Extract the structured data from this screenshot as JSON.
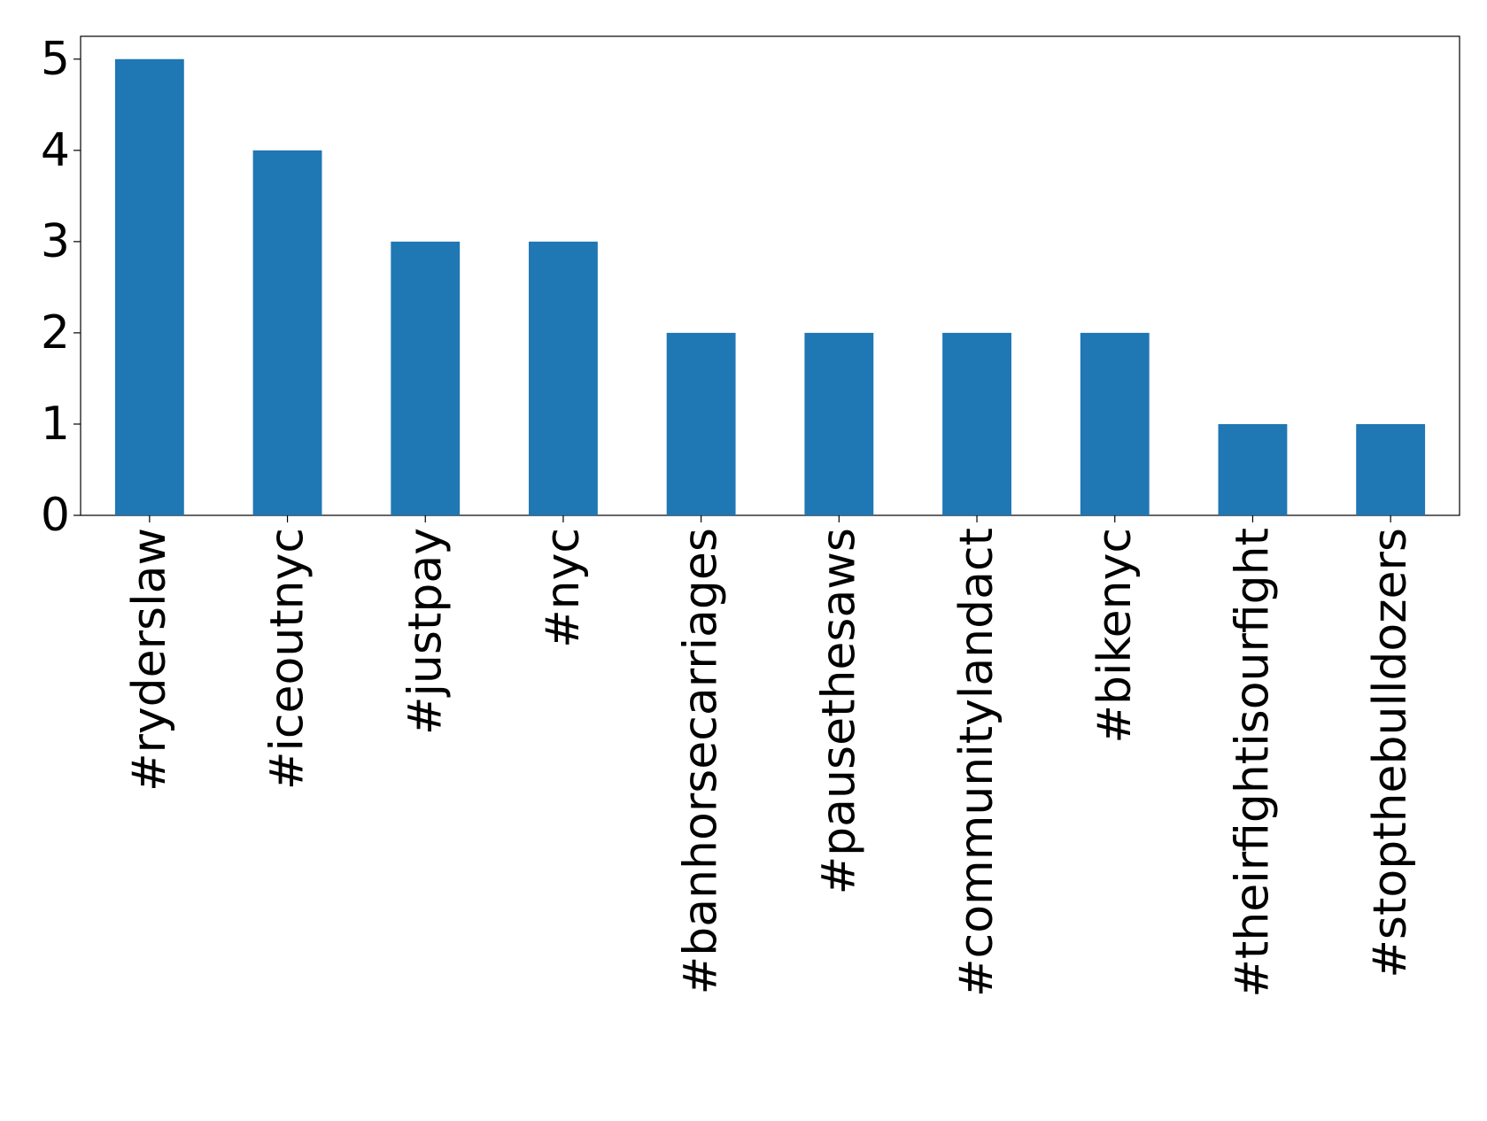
{
  "chart_data": {
    "type": "bar",
    "categories": [
      "#ryderslaw",
      "#iceoutnyc",
      "#justpay",
      "#nyc",
      "#banhorsecarriages",
      "#pausethesaws",
      "#communitylandact",
      "#bikenyc",
      "#theirfightisourfight",
      "#stopthebulldozers"
    ],
    "values": [
      5,
      4,
      3,
      3,
      2,
      2,
      2,
      2,
      1,
      1
    ],
    "color": "#1f77b4",
    "ylim": [
      0,
      5.25
    ],
    "yticks": [
      0,
      1,
      2,
      3,
      4,
      5
    ],
    "grid": false
  }
}
